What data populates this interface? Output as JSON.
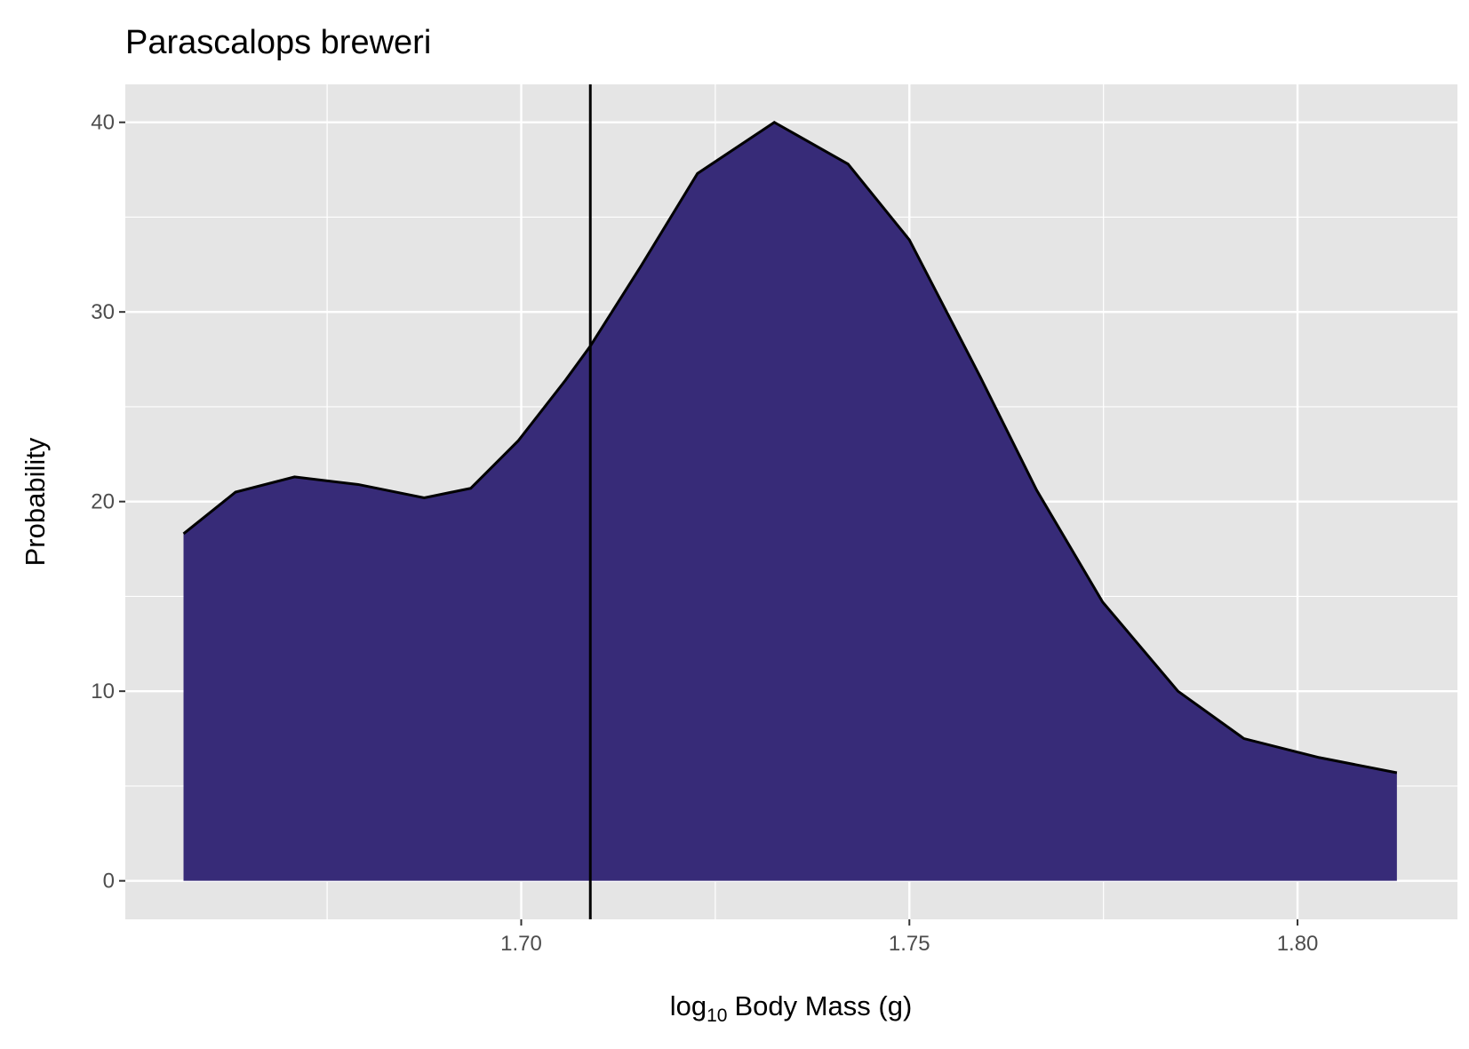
{
  "chart_data": {
    "type": "area",
    "title": "Parascalops breweri",
    "x_label": [
      "log",
      "10",
      "Body Mass (g)"
    ],
    "y_label": "Probability",
    "x": [
      1.6565,
      1.6632,
      1.6708,
      1.679,
      1.6875,
      1.6935,
      1.6996,
      1.7057,
      1.7089,
      1.7154,
      1.7227,
      1.7326,
      1.7421,
      1.75,
      1.7591,
      1.7664,
      1.7749,
      1.7846,
      1.7931,
      1.8028,
      1.8128
    ],
    "series": [
      {
        "color": "#372b78",
        "values": [
          18.3,
          20.5,
          21.3,
          20.9,
          20.2,
          20.7,
          23.2,
          26.4,
          28.2,
          32.4,
          37.3,
          40.0,
          37.8,
          33.8,
          26.6,
          20.6,
          14.7,
          10.0,
          7.5,
          6.5,
          5.7
        ]
      }
    ],
    "vline": 1.7089,
    "xlim": [
      1.649,
      1.8206
    ],
    "ylim": [
      -2.03,
      42.0
    ],
    "xticks": [
      {
        "value": 1.7,
        "label": "1.70"
      },
      1.75,
      {
        "value": 1.8,
        "label": "1.80"
      }
    ],
    "yticks": [
      0,
      10,
      20,
      30,
      40
    ],
    "grid": true
  }
}
